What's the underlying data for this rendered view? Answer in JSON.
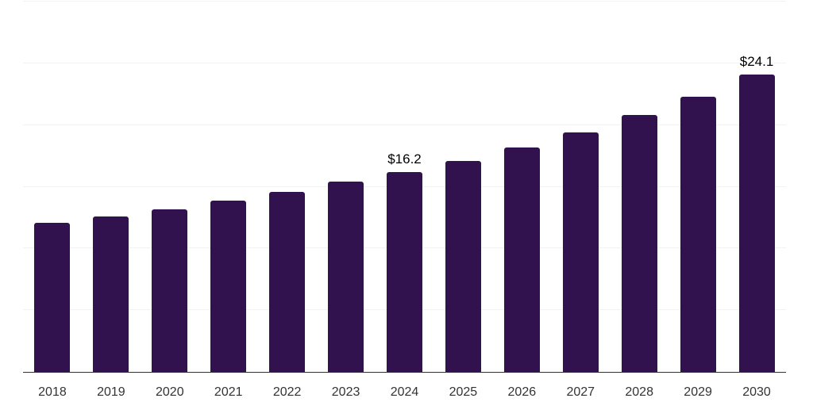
{
  "chart_data": {
    "type": "bar",
    "title": "",
    "xlabel": "",
    "ylabel": "",
    "categories": [
      "2018",
      "2019",
      "2020",
      "2021",
      "2022",
      "2023",
      "2024",
      "2025",
      "2026",
      "2027",
      "2028",
      "2029",
      "2030"
    ],
    "values": [
      12.1,
      12.6,
      13.2,
      13.9,
      14.6,
      15.4,
      16.2,
      17.1,
      18.2,
      19.4,
      20.8,
      22.3,
      24.1
    ],
    "annotations": [
      {
        "category": "2024",
        "text": "$16.2"
      },
      {
        "category": "2030",
        "text": "$24.1"
      }
    ],
    "ylim": [
      0,
      30
    ],
    "grid_step": 5,
    "grid": "horizontal",
    "legend": "none",
    "colors": {
      "bar": "#32124E",
      "gridline": "#F2F2F2",
      "axis": "#333333",
      "tick_text": "#333333",
      "annotation_text": "#000000"
    }
  }
}
